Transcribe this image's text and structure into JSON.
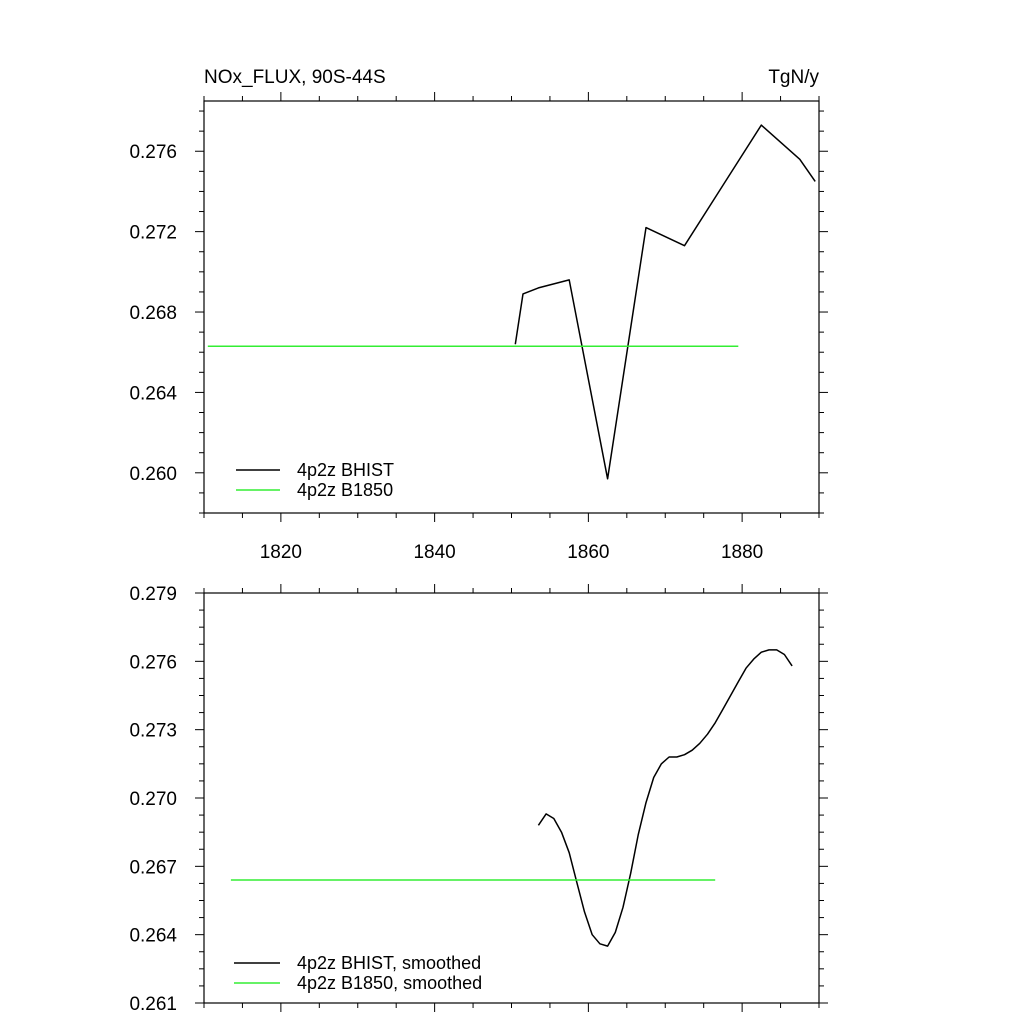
{
  "chart_data": [
    {
      "type": "line",
      "title": "NOx_FLUX, 90S-44S",
      "units": "TgN/y",
      "xlim": [
        1810,
        1890
      ],
      "ylim": [
        0.258,
        0.2785
      ],
      "x_ticks": [
        1820,
        1840,
        1860,
        1880
      ],
      "y_ticks": [
        0.26,
        0.264,
        0.268,
        0.272,
        0.276
      ],
      "x_tick_labels": [
        "1820",
        "1840",
        "1860",
        "1880"
      ],
      "y_tick_labels": [
        "0.260",
        "0.264",
        "0.268",
        "0.272",
        "0.276"
      ],
      "grid": false,
      "legend_placement": "bottom-left",
      "series": [
        {
          "name": "4p2z BHIST",
          "color": "#000000",
          "x": [
            1850.5,
            1851.5,
            1853.5,
            1855.5,
            1857.5,
            1862.5,
            1867.5,
            1872.5,
            1877.5,
            1882.5,
            1887.5,
            1889.5
          ],
          "y": [
            0.2664,
            0.2689,
            0.2692,
            0.2694,
            0.2696,
            0.2597,
            0.2722,
            0.2713,
            0.2743,
            0.2773,
            0.2756,
            0.2745
          ]
        },
        {
          "name": "4p2z B1850",
          "color": "#33ee33",
          "x": [
            1810.5,
            1879.5
          ],
          "y": [
            0.2663,
            0.2663
          ]
        }
      ]
    },
    {
      "type": "line",
      "title": "",
      "xlim": [
        1810,
        1890
      ],
      "ylim": [
        0.261,
        0.279
      ],
      "x_ticks": [
        1820,
        1840,
        1860,
        1880
      ],
      "y_ticks": [
        0.261,
        0.264,
        0.267,
        0.27,
        0.273,
        0.276,
        0.279
      ],
      "y_tick_labels": [
        "0.261",
        "0.264",
        "0.267",
        "0.270",
        "0.273",
        "0.276",
        "0.279"
      ],
      "grid": false,
      "legend_placement": "bottom-left",
      "series": [
        {
          "name": "4p2z BHIST, smoothed",
          "color": "#000000",
          "x": [
            1853.5,
            1854.5,
            1855.5,
            1856.5,
            1857.5,
            1858.5,
            1859.5,
            1860.5,
            1861.5,
            1862.5,
            1863.5,
            1864.5,
            1865.5,
            1866.5,
            1867.5,
            1868.5,
            1869.5,
            1870.5,
            1871.5,
            1872.5,
            1873.5,
            1874.5,
            1875.5,
            1876.5,
            1877.5,
            1878.5,
            1879.5,
            1880.5,
            1881.5,
            1882.5,
            1883.5,
            1884.5,
            1885.5,
            1886.5
          ],
          "y": [
            0.2688,
            0.2693,
            0.2691,
            0.2685,
            0.2676,
            0.2663,
            0.265,
            0.264,
            0.2636,
            0.2635,
            0.2641,
            0.2652,
            0.2667,
            0.2684,
            0.2698,
            0.2709,
            0.2715,
            0.2718,
            0.2718,
            0.2719,
            0.2721,
            0.2724,
            0.2728,
            0.2733,
            0.2739,
            0.2745,
            0.2751,
            0.2757,
            0.2761,
            0.2764,
            0.2765,
            0.2765,
            0.2763,
            0.2758
          ]
        },
        {
          "name": "4p2z B1850, smoothed",
          "color": "#33ee33",
          "x": [
            1813.5,
            1876.5
          ],
          "y": [
            0.2664,
            0.2664
          ]
        }
      ]
    }
  ]
}
